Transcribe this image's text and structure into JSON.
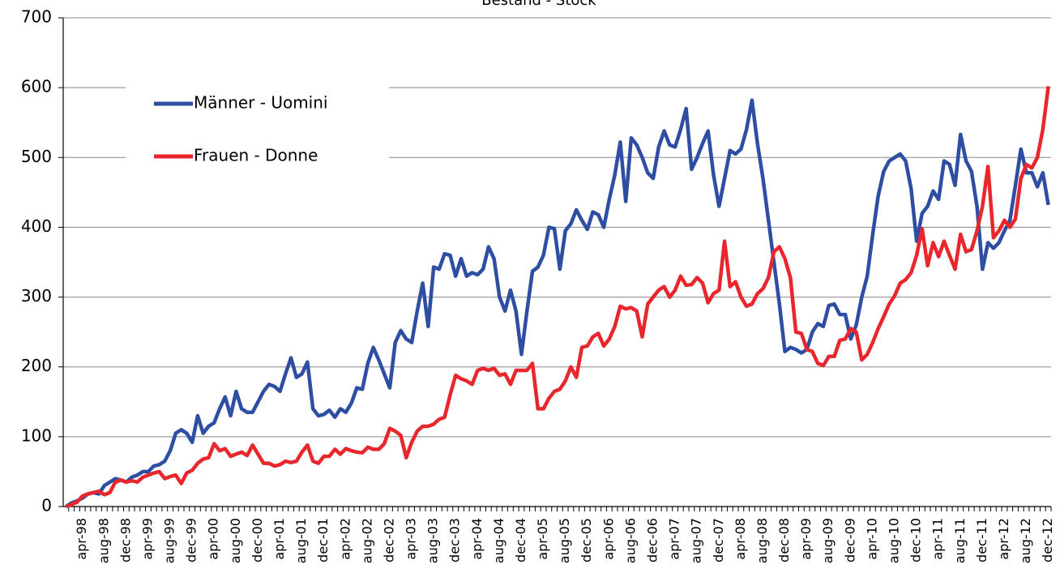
{
  "chart_data": {
    "type": "line",
    "title": "Bestand - Stock",
    "categories": [
      null,
      null,
      null,
      "apr-98",
      null,
      null,
      null,
      "aug-98",
      null,
      null,
      null,
      "dec-98",
      null,
      null,
      null,
      "apr-99",
      null,
      null,
      null,
      "aug-99",
      null,
      null,
      null,
      "dec-99",
      null,
      null,
      null,
      "apr-00",
      null,
      null,
      null,
      "aug-00",
      null,
      null,
      null,
      "dec-00",
      null,
      null,
      null,
      "apr-01",
      null,
      null,
      null,
      "aug-01",
      null,
      null,
      null,
      "dec-01",
      null,
      null,
      null,
      "apr-02",
      null,
      null,
      null,
      "aug-02",
      null,
      null,
      null,
      "dec-02",
      null,
      null,
      null,
      "apr-03",
      null,
      null,
      null,
      "aug-03",
      null,
      null,
      null,
      "dec-03",
      null,
      null,
      null,
      "apr-04",
      null,
      null,
      null,
      "aug-04",
      null,
      null,
      null,
      "dec-04",
      null,
      null,
      null,
      "apr-05",
      null,
      null,
      null,
      "aug-05",
      null,
      null,
      null,
      "dec-05",
      null,
      null,
      null,
      "apr-06",
      null,
      null,
      null,
      "aug-06",
      null,
      null,
      null,
      "dec-06",
      null,
      null,
      null,
      "apr-07",
      null,
      null,
      null,
      "aug-07",
      null,
      null,
      null,
      "dec-07",
      null,
      null,
      null,
      "apr-08",
      null,
      null,
      null,
      "aug-08",
      null,
      null,
      null,
      "dec-08",
      null,
      null,
      null,
      "apr-09",
      null,
      null,
      null,
      "aug-09",
      null,
      null,
      null,
      "dec-09",
      null,
      null,
      null,
      "apr-10",
      null,
      null,
      null,
      "aug-10",
      null,
      null,
      null,
      "dec-10",
      null,
      null,
      null,
      "apr-11",
      null,
      null,
      null,
      "aug-11",
      null,
      null,
      null,
      "dec-11",
      null,
      null,
      null,
      "apr-12",
      null,
      null,
      null,
      "aug-12",
      null,
      null,
      null,
      "dec-12"
    ],
    "series": [
      {
        "name": "Männer - Uomini",
        "color": "#2e4ea3",
        "values": [
          0,
          5,
          8,
          12,
          18,
          20,
          18,
          30,
          35,
          40,
          38,
          35,
          42,
          45,
          50,
          50,
          58,
          60,
          65,
          80,
          105,
          110,
          105,
          92,
          130,
          105,
          115,
          120,
          140,
          157,
          130,
          165,
          140,
          135,
          135,
          150,
          165,
          175,
          172,
          165,
          190,
          213,
          185,
          190,
          207,
          140,
          130,
          132,
          138,
          128,
          140,
          135,
          148,
          170,
          168,
          205,
          228,
          210,
          190,
          170,
          235,
          252,
          240,
          235,
          280,
          320,
          258,
          343,
          340,
          362,
          360,
          330,
          355,
          330,
          335,
          332,
          340,
          372,
          355,
          300,
          280,
          310,
          280,
          218,
          280,
          337,
          343,
          360,
          400,
          398,
          340,
          395,
          405,
          425,
          410,
          397,
          422,
          418,
          400,
          440,
          475,
          522,
          437,
          528,
          518,
          500,
          478,
          470,
          515,
          538,
          518,
          515,
          540,
          570,
          483,
          500,
          520,
          538,
          475,
          430,
          470,
          510,
          505,
          512,
          540,
          582,
          520,
          470,
          410,
          350,
          290,
          222,
          228,
          225,
          220,
          225,
          250,
          262,
          258,
          288,
          290,
          275,
          275,
          240,
          260,
          300,
          330,
          390,
          445,
          480,
          495,
          500,
          505,
          495,
          455,
          380,
          420,
          430,
          452,
          440,
          495,
          490,
          460,
          533,
          495,
          480,
          430,
          340,
          378,
          370,
          378,
          395,
          410,
          460,
          512,
          478,
          478,
          458,
          478,
          432
        ]
      },
      {
        "name": "Frauen - Donne",
        "color": "#e8262c",
        "values": [
          0,
          3,
          6,
          15,
          18,
          20,
          22,
          17,
          20,
          35,
          38,
          35,
          37,
          35,
          42,
          45,
          48,
          50,
          40,
          43,
          45,
          33,
          48,
          52,
          62,
          68,
          70,
          90,
          80,
          83,
          72,
          75,
          78,
          73,
          88,
          75,
          62,
          62,
          58,
          60,
          65,
          63,
          65,
          78,
          88,
          65,
          62,
          72,
          72,
          82,
          75,
          83,
          80,
          78,
          77,
          85,
          82,
          82,
          90,
          112,
          108,
          102,
          70,
          92,
          108,
          115,
          115,
          118,
          125,
          128,
          160,
          188,
          183,
          180,
          175,
          195,
          198,
          195,
          198,
          188,
          190,
          175,
          195,
          195,
          195,
          205,
          140,
          140,
          155,
          165,
          168,
          180,
          200,
          185,
          228,
          230,
          243,
          248,
          230,
          240,
          258,
          287,
          283,
          285,
          280,
          243,
          290,
          300,
          310,
          315,
          300,
          310,
          330,
          317,
          318,
          328,
          320,
          292,
          305,
          310,
          380,
          315,
          322,
          300,
          287,
          290,
          305,
          312,
          328,
          365,
          372,
          355,
          328,
          250,
          248,
          225,
          222,
          205,
          202,
          215,
          215,
          238,
          240,
          255,
          250,
          210,
          218,
          235,
          255,
          272,
          290,
          302,
          320,
          325,
          335,
          360,
          398,
          345,
          378,
          358,
          380,
          360,
          340,
          390,
          365,
          368,
          395,
          430,
          487,
          385,
          395,
          410,
          400,
          412,
          470,
          490,
          485,
          500,
          540,
          602
        ]
      }
    ],
    "ylim": [
      0,
      700
    ],
    "yticks": [
      0,
      100,
      200,
      300,
      400,
      500,
      600,
      700
    ],
    "grid": true,
    "legend": "upper left"
  }
}
